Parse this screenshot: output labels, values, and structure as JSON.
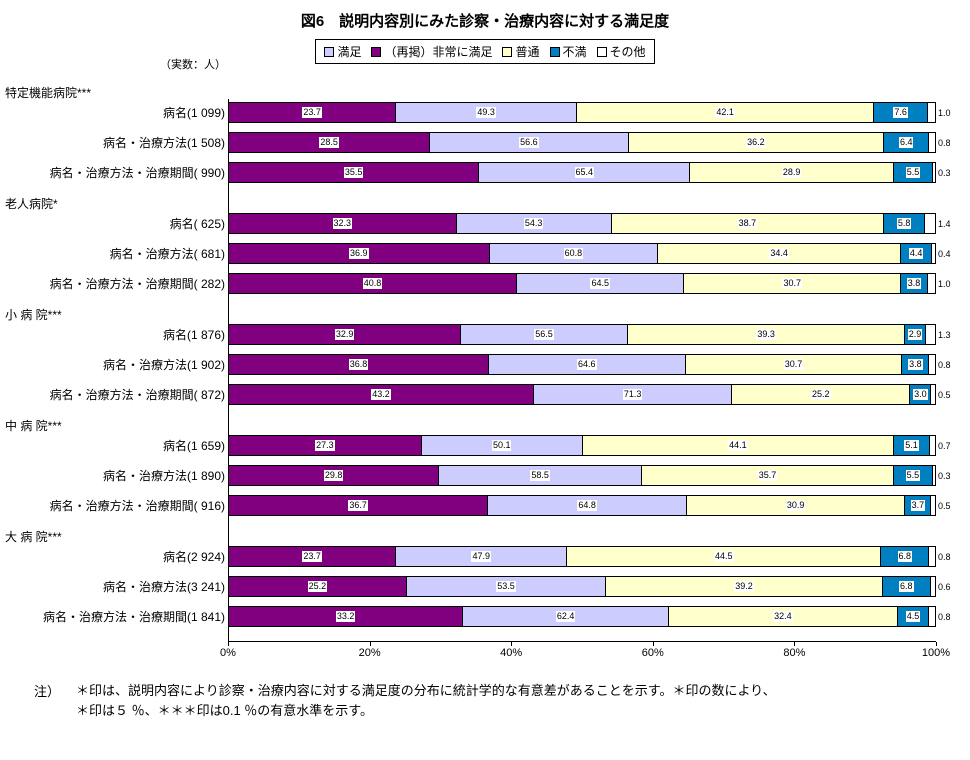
{
  "title": "図6　説明内容別にみた診察・治療内容に対する満足度",
  "unit_note": "（実数：人）",
  "legend": [
    {
      "label": "満足",
      "color": "#CCCCFF"
    },
    {
      "label": "（再掲）非常に満足",
      "color": "#800080"
    },
    {
      "label": "普通",
      "color": "#FFFFCC"
    },
    {
      "label": "不満",
      "color": "#0080C0"
    },
    {
      "label": "その他",
      "color": "#FFFFFF"
    }
  ],
  "colors": {
    "very_satisfied": "#800080",
    "satisfied": "#CCCCFF",
    "normal": "#FFFFCC",
    "dissatisfied": "#0080C0",
    "other": "#FFFFFF"
  },
  "chart_data": {
    "type": "bar",
    "variant": "horizontal-100pct-stacked",
    "xlim": [
      0,
      100
    ],
    "x_ticks": [
      "0%",
      "20%",
      "40%",
      "60%",
      "80%",
      "100%"
    ],
    "series_names": [
      "（再掲）非常に満足",
      "満足",
      "普通",
      "不満",
      "その他"
    ],
    "groups": [
      {
        "name": "特定機能病院***",
        "rows": [
          {
            "label": "病名(1 099)",
            "very_satisfied": 23.7,
            "satisfied": 49.3,
            "normal": 42.1,
            "dissatisfied": 7.6,
            "other": 1.0
          },
          {
            "label": "病名・治療方法(1 508)",
            "very_satisfied": 28.5,
            "satisfied": 56.6,
            "normal": 36.2,
            "dissatisfied": 6.4,
            "other": 0.8
          },
          {
            "label": "病名・治療方法・治療期間( 990)",
            "very_satisfied": 35.5,
            "satisfied": 65.4,
            "normal": 28.9,
            "dissatisfied": 5.5,
            "other": 0.3
          }
        ]
      },
      {
        "name": "老人病院*",
        "rows": [
          {
            "label": "病名( 625)",
            "very_satisfied": 32.3,
            "satisfied": 54.3,
            "normal": 38.7,
            "dissatisfied": 5.8,
            "other": 1.4
          },
          {
            "label": "病名・治療方法( 681)",
            "very_satisfied": 36.9,
            "satisfied": 60.8,
            "normal": 34.4,
            "dissatisfied": 4.4,
            "other": 0.4
          },
          {
            "label": "病名・治療方法・治療期間( 282)",
            "very_satisfied": 40.8,
            "satisfied": 64.5,
            "normal": 30.7,
            "dissatisfied": 3.8,
            "other": 1.0
          }
        ]
      },
      {
        "name": "小 病 院***",
        "rows": [
          {
            "label": "病名(1 876)",
            "very_satisfied": 32.9,
            "satisfied": 56.5,
            "normal": 39.3,
            "dissatisfied": 2.9,
            "other": 1.3
          },
          {
            "label": "病名・治療方法(1 902)",
            "very_satisfied": 36.8,
            "satisfied": 64.6,
            "normal": 30.7,
            "dissatisfied": 3.8,
            "other": 0.8
          },
          {
            "label": "病名・治療方法・治療期間( 872)",
            "very_satisfied": 43.2,
            "satisfied": 71.3,
            "normal": 25.2,
            "dissatisfied": 3.0,
            "other": 0.5
          }
        ]
      },
      {
        "name": "中 病 院***",
        "rows": [
          {
            "label": "病名(1 659)",
            "very_satisfied": 27.3,
            "satisfied": 50.1,
            "normal": 44.1,
            "dissatisfied": 5.1,
            "other": 0.7
          },
          {
            "label": "病名・治療方法(1 890)",
            "very_satisfied": 29.8,
            "satisfied": 58.5,
            "normal": 35.7,
            "dissatisfied": 5.5,
            "other": 0.3
          },
          {
            "label": "病名・治療方法・治療期間( 916)",
            "very_satisfied": 36.7,
            "satisfied": 64.8,
            "normal": 30.9,
            "dissatisfied": 3.7,
            "other": 0.5
          }
        ]
      },
      {
        "name": "大 病 院***",
        "rows": [
          {
            "label": "病名(2 924)",
            "very_satisfied": 23.7,
            "satisfied": 47.9,
            "normal": 44.5,
            "dissatisfied": 6.8,
            "other": 0.8
          },
          {
            "label": "病名・治療方法(3 241)",
            "very_satisfied": 25.2,
            "satisfied": 53.5,
            "normal": 39.2,
            "dissatisfied": 6.8,
            "other": 0.6
          },
          {
            "label": "病名・治療方法・治療期間(1 841)",
            "very_satisfied": 33.2,
            "satisfied": 62.4,
            "normal": 32.4,
            "dissatisfied": 4.5,
            "other": 0.8
          }
        ]
      }
    ]
  },
  "footnote": {
    "prefix": "注）",
    "line1": "＊印は、説明内容により診察・治療内容に対する満足度の分布に統計学的な有意差があることを示す。＊印の数により、",
    "line2": "＊印は５ ％、＊＊＊印は0.1 ％の有意水準を示す。"
  }
}
